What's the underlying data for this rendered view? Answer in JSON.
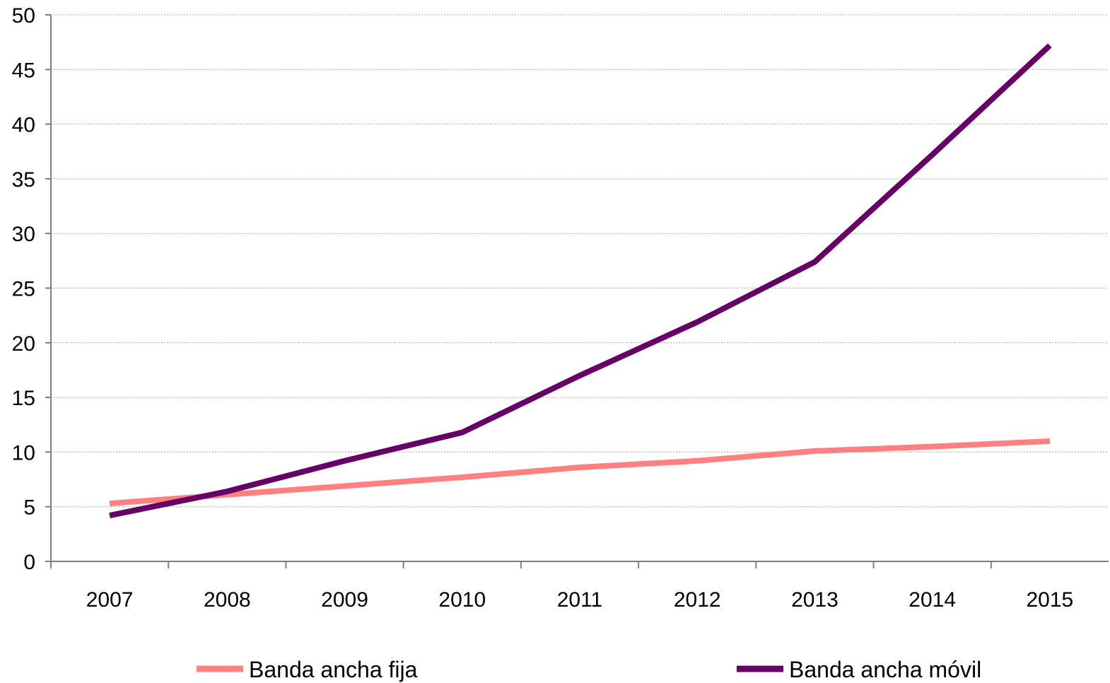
{
  "chart_data": {
    "type": "line",
    "title": "",
    "xlabel": "",
    "ylabel": "",
    "categories": [
      "2007",
      "2008",
      "2009",
      "2010",
      "2011",
      "2012",
      "2013",
      "2014",
      "2015"
    ],
    "ylim": [
      0,
      50
    ],
    "yticks": [
      0,
      5,
      10,
      15,
      20,
      25,
      30,
      35,
      40,
      45,
      50
    ],
    "grid": "horizontal",
    "legend_position": "bottom",
    "series": [
      {
        "name": "Banda ancha fija",
        "color": "#ff8080",
        "values": [
          5.3,
          6.1,
          6.9,
          7.7,
          8.6,
          9.2,
          10.1,
          10.5,
          11.0
        ]
      },
      {
        "name": "Banda ancha móvil",
        "color": "#660066",
        "values": [
          4.2,
          6.4,
          9.2,
          11.8,
          17.0,
          21.9,
          27.4,
          37.2,
          47.2
        ]
      }
    ]
  }
}
